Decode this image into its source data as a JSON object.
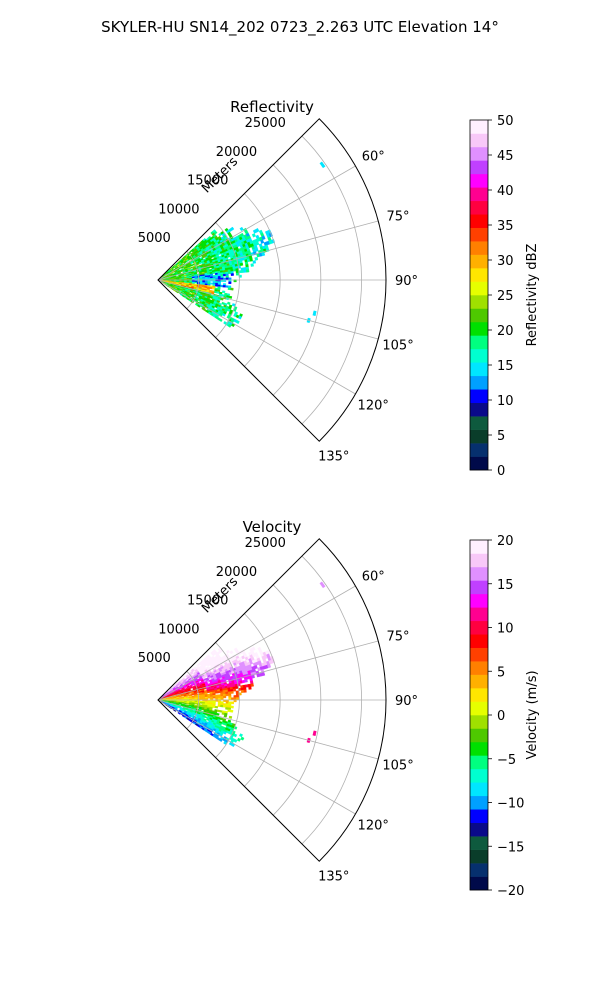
{
  "figure": {
    "title": "SKYLER-HU  SN14_202  0723_2.263 UTC Elevation 14°"
  },
  "chart_data": [
    {
      "type": "heatmap",
      "projection": "polar-sector",
      "title": "Reflectivity",
      "range_label": "Meters",
      "range_ticks": [
        "5000",
        "10000",
        "15000",
        "20000",
        "25000"
      ],
      "range_values": [
        5000,
        10000,
        15000,
        20000,
        25000
      ],
      "rlim": [
        0,
        28000
      ],
      "theta_ticks": [
        "60°",
        "75°",
        "90°",
        "105°",
        "120°",
        "135°"
      ],
      "theta_values": [
        60,
        75,
        90,
        105,
        120,
        135
      ],
      "theta_range": [
        45,
        135
      ],
      "grid": true,
      "colorbar": {
        "label": "Reflectivity dBZ",
        "min": 0,
        "max": 50,
        "ticks": [
          "0",
          "5",
          "10",
          "15",
          "20",
          "25",
          "30",
          "35",
          "40",
          "45",
          "50"
        ],
        "tick_values": [
          0,
          5,
          10,
          15,
          20,
          25,
          30,
          35,
          40,
          45,
          50
        ],
        "colors": [
          "#000a4a",
          "#06306e",
          "#0a3d2a",
          "#0e5a3e",
          "#0a0a8a",
          "#0000ff",
          "#00a0ff",
          "#00e6ff",
          "#00ffd0",
          "#00ff80",
          "#00e000",
          "#4ec800",
          "#a0e000",
          "#e6ff00",
          "#ffe600",
          "#ffb000",
          "#ff8000",
          "#ff4000",
          "#ff0000",
          "#ff0040",
          "#ff0090",
          "#ff00ff",
          "#c040ff",
          "#e090ff",
          "#f8c8f8",
          "#fff0ff"
        ]
      }
    },
    {
      "type": "heatmap",
      "projection": "polar-sector",
      "title": "Velocity",
      "range_label": "Meters",
      "range_ticks": [
        "5000",
        "10000",
        "15000",
        "20000",
        "25000"
      ],
      "range_values": [
        5000,
        10000,
        15000,
        20000,
        25000
      ],
      "rlim": [
        0,
        28000
      ],
      "theta_ticks": [
        "60°",
        "75°",
        "90°",
        "105°",
        "120°",
        "135°"
      ],
      "theta_values": [
        60,
        75,
        90,
        105,
        120,
        135
      ],
      "theta_range": [
        45,
        135
      ],
      "grid": true,
      "colorbar": {
        "label": "Velocity (m/s)",
        "min": -20,
        "max": 20,
        "ticks": [
          "−20",
          "−15",
          "−10",
          "−5",
          "0",
          "5",
          "10",
          "15",
          "20"
        ],
        "tick_values": [
          -20,
          -15,
          -10,
          -5,
          0,
          5,
          10,
          15,
          20
        ],
        "colors": [
          "#000a4a",
          "#06306e",
          "#0a3d2a",
          "#0e5a3e",
          "#0a0a8a",
          "#0000ff",
          "#00a0ff",
          "#00e6ff",
          "#00ffd0",
          "#00ff80",
          "#00e000",
          "#4ec800",
          "#a0e000",
          "#e6ff00",
          "#ffe600",
          "#ffb000",
          "#ff8000",
          "#ff4000",
          "#ff0000",
          "#ff0040",
          "#ff0090",
          "#ff00ff",
          "#c040ff",
          "#e090ff",
          "#f8c8f8",
          "#fff0ff"
        ]
      }
    }
  ]
}
